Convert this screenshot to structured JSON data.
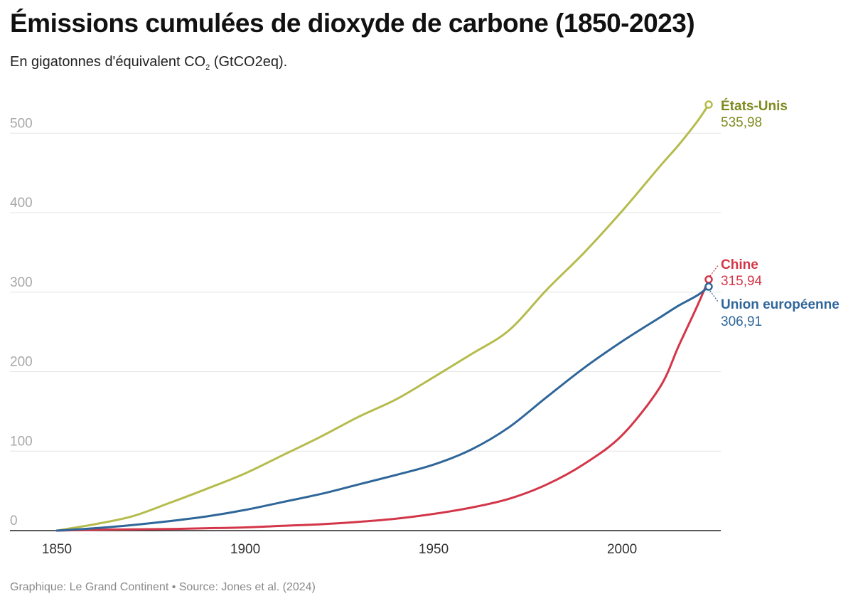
{
  "header": {
    "title": "Émissions cumulées de dioxyde de carbone (1850-2023)",
    "subtitle_prefix": "En gigatonnes d'équivalent CO",
    "subtitle_sub": "2",
    "subtitle_suffix": " (GtCO2eq)."
  },
  "footer": {
    "text": "Graphique: Le Grand Continent • Source: Jones et al. (2024)"
  },
  "chart_data": {
    "type": "line",
    "title": "Émissions cumulées de dioxyde de carbone (1850-2023)",
    "subtitle": "En gigatonnes d'équivalent CO2 (GtCO2eq).",
    "xlabel": "",
    "ylabel": "",
    "xlim": [
      1850,
      2023
    ],
    "ylim": [
      0,
      500
    ],
    "x_ticks": [
      1850,
      1900,
      1950,
      2000
    ],
    "y_ticks": [
      0,
      100,
      200,
      300,
      400,
      500
    ],
    "grid": "horizontal",
    "legend": "direct labels at line ends",
    "x": [
      1850,
      1860,
      1870,
      1880,
      1890,
      1900,
      1910,
      1920,
      1930,
      1940,
      1950,
      1960,
      1970,
      1980,
      1990,
      2000,
      2010,
      2015,
      2020,
      2023
    ],
    "series": [
      {
        "name": "États-Unis",
        "color": "#b5bc4c",
        "label_color": "#7f8a1f",
        "end_label": "535,98",
        "values": [
          0,
          8,
          18,
          35,
          53,
          72,
          95,
          118,
          143,
          165,
          193,
          222,
          252,
          303,
          350,
          402,
          458,
          485,
          515,
          535.98
        ]
      },
      {
        "name": "Chine",
        "color": "#d33648",
        "label_color": "#d33648",
        "end_label": "315,94",
        "values": [
          0,
          1,
          1.5,
          2,
          3,
          4,
          6,
          8,
          11,
          15,
          21,
          29,
          40,
          58,
          84,
          120,
          180,
          232,
          283,
          315.94
        ]
      },
      {
        "name": "Union européenne",
        "color": "#2f6699",
        "label_color": "#2f6699",
        "end_label": "306,91",
        "values": [
          0,
          3,
          7,
          12,
          18,
          26,
          36,
          46,
          58,
          70,
          83,
          102,
          130,
          168,
          205,
          238,
          268,
          283,
          296,
          306.91
        ]
      }
    ]
  }
}
